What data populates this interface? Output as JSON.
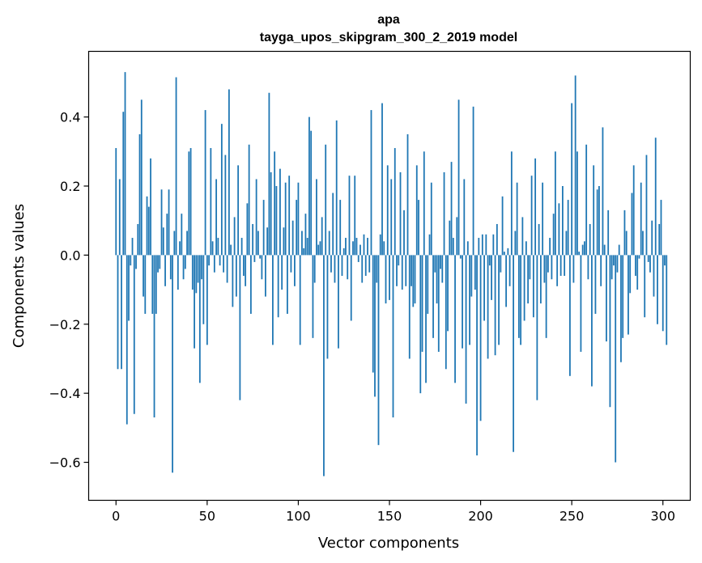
{
  "chart_data": {
    "type": "bar",
    "title": "apa",
    "subtitle": "tayga_upos_skipgram_300_2_2019 model",
    "xlabel": "Vector components",
    "ylabel": "Components values",
    "xlim": [
      -15,
      315
    ],
    "ylim": [
      -0.71,
      0.59
    ],
    "xticks": [
      0,
      50,
      100,
      150,
      200,
      250,
      300
    ],
    "yticks": [
      -0.6,
      -0.4,
      -0.2,
      0.0,
      0.2,
      0.4
    ],
    "ytick_labels": [
      "−0.6",
      "−0.4",
      "−0.2",
      "0.0",
      "0.2",
      "0.4"
    ],
    "xtick_labels": [
      "0",
      "50",
      "100",
      "150",
      "200",
      "250",
      "300"
    ],
    "bar_color": "#1f77b4",
    "grid": false,
    "values": [
      0.31,
      -0.33,
      0.22,
      -0.33,
      0.415,
      0.53,
      -0.49,
      -0.19,
      -0.03,
      0.05,
      -0.46,
      -0.04,
      0.09,
      0.35,
      0.45,
      -0.12,
      -0.17,
      0.17,
      0.14,
      0.28,
      -0.17,
      -0.47,
      -0.17,
      -0.05,
      -0.04,
      0.19,
      0.08,
      -0.09,
      0.12,
      0.19,
      -0.07,
      -0.63,
      0.07,
      0.515,
      -0.1,
      0.04,
      0.12,
      -0.07,
      -0.04,
      0.07,
      0.3,
      0.31,
      -0.1,
      -0.27,
      -0.11,
      -0.08,
      -0.37,
      -0.07,
      -0.2,
      0.42,
      -0.26,
      -0.03,
      0.31,
      0.04,
      -0.05,
      0.22,
      0.05,
      -0.03,
      0.38,
      -0.05,
      0.29,
      -0.08,
      0.48,
      0.03,
      -0.15,
      0.11,
      -0.12,
      0.26,
      -0.42,
      0.05,
      -0.06,
      -0.09,
      0.15,
      0.32,
      -0.17,
      0.09,
      -0.02,
      0.22,
      0.07,
      -0.01,
      -0.07,
      0.16,
      -0.12,
      0.08,
      0.47,
      0.24,
      -0.26,
      0.3,
      0.2,
      -0.18,
      0.25,
      -0.1,
      0.08,
      0.21,
      -0.17,
      0.23,
      -0.05,
      0.1,
      -0.09,
      0.16,
      0.21,
      -0.26,
      0.07,
      0.02,
      0.12,
      0.05,
      0.4,
      0.36,
      -0.24,
      -0.08,
      0.22,
      0.03,
      0.04,
      0.11,
      -0.64,
      0.32,
      -0.3,
      0.07,
      -0.05,
      0.18,
      -0.08,
      0.39,
      -0.27,
      0.16,
      -0.06,
      0.02,
      0.05,
      -0.07,
      0.23,
      -0.19,
      0.04,
      0.23,
      0.05,
      -0.02,
      0.03,
      -0.08,
      0.06,
      -0.06,
      0.05,
      -0.05,
      0.42,
      -0.34,
      -0.41,
      -0.08,
      -0.55,
      0.06,
      0.44,
      0.04,
      -0.14,
      0.26,
      -0.13,
      0.22,
      -0.47,
      0.31,
      -0.09,
      -0.03,
      0.24,
      -0.1,
      0.13,
      -0.09,
      0.35,
      -0.3,
      -0.09,
      -0.15,
      -0.14,
      0.26,
      0.16,
      -0.4,
      -0.28,
      0.3,
      -0.37,
      -0.17,
      0.06,
      0.21,
      -0.24,
      -0.05,
      -0.14,
      -0.28,
      -0.04,
      -0.08,
      0.24,
      -0.33,
      -0.22,
      0.1,
      0.27,
      0.05,
      -0.37,
      0.11,
      0.45,
      -0.01,
      -0.27,
      0.22,
      -0.43,
      0.04,
      -0.26,
      -0.12,
      0.43,
      -0.1,
      -0.58,
      0.05,
      -0.48,
      0.06,
      -0.19,
      0.06,
      -0.3,
      -0.03,
      -0.13,
      0.06,
      -0.29,
      0.09,
      -0.26,
      -0.05,
      0.17,
      0.01,
      -0.15,
      0.02,
      -0.09,
      0.3,
      -0.57,
      0.07,
      0.21,
      -0.24,
      -0.26,
      0.11,
      -0.19,
      0.04,
      -0.14,
      -0.07,
      0.23,
      -0.18,
      0.28,
      -0.42,
      0.09,
      -0.14,
      0.21,
      -0.08,
      -0.24,
      -0.05,
      0.05,
      -0.07,
      0.12,
      0.3,
      -0.09,
      0.15,
      -0.06,
      0.2,
      -0.06,
      0.07,
      0.16,
      -0.35,
      0.44,
      -0.08,
      0.52,
      0.3,
      0.01,
      -0.28,
      0.03,
      0.04,
      0.32,
      -0.07,
      0.09,
      -0.38,
      0.26,
      -0.17,
      0.19,
      0.2,
      -0.09,
      0.37,
      0.03,
      -0.25,
      0.13,
      -0.44,
      -0.07,
      -0.03,
      -0.6,
      -0.05,
      0.03,
      -0.31,
      -0.24,
      0.13,
      0.07,
      -0.23,
      -0.11,
      0.18,
      0.26,
      -0.06,
      -0.1,
      -0.01,
      0.21,
      0.07,
      -0.18,
      0.29,
      -0.02,
      -0.05,
      0.1,
      -0.12,
      0.34,
      -0.2,
      0.09,
      0.16,
      -0.22,
      -0.03,
      -0.26
    ]
  }
}
